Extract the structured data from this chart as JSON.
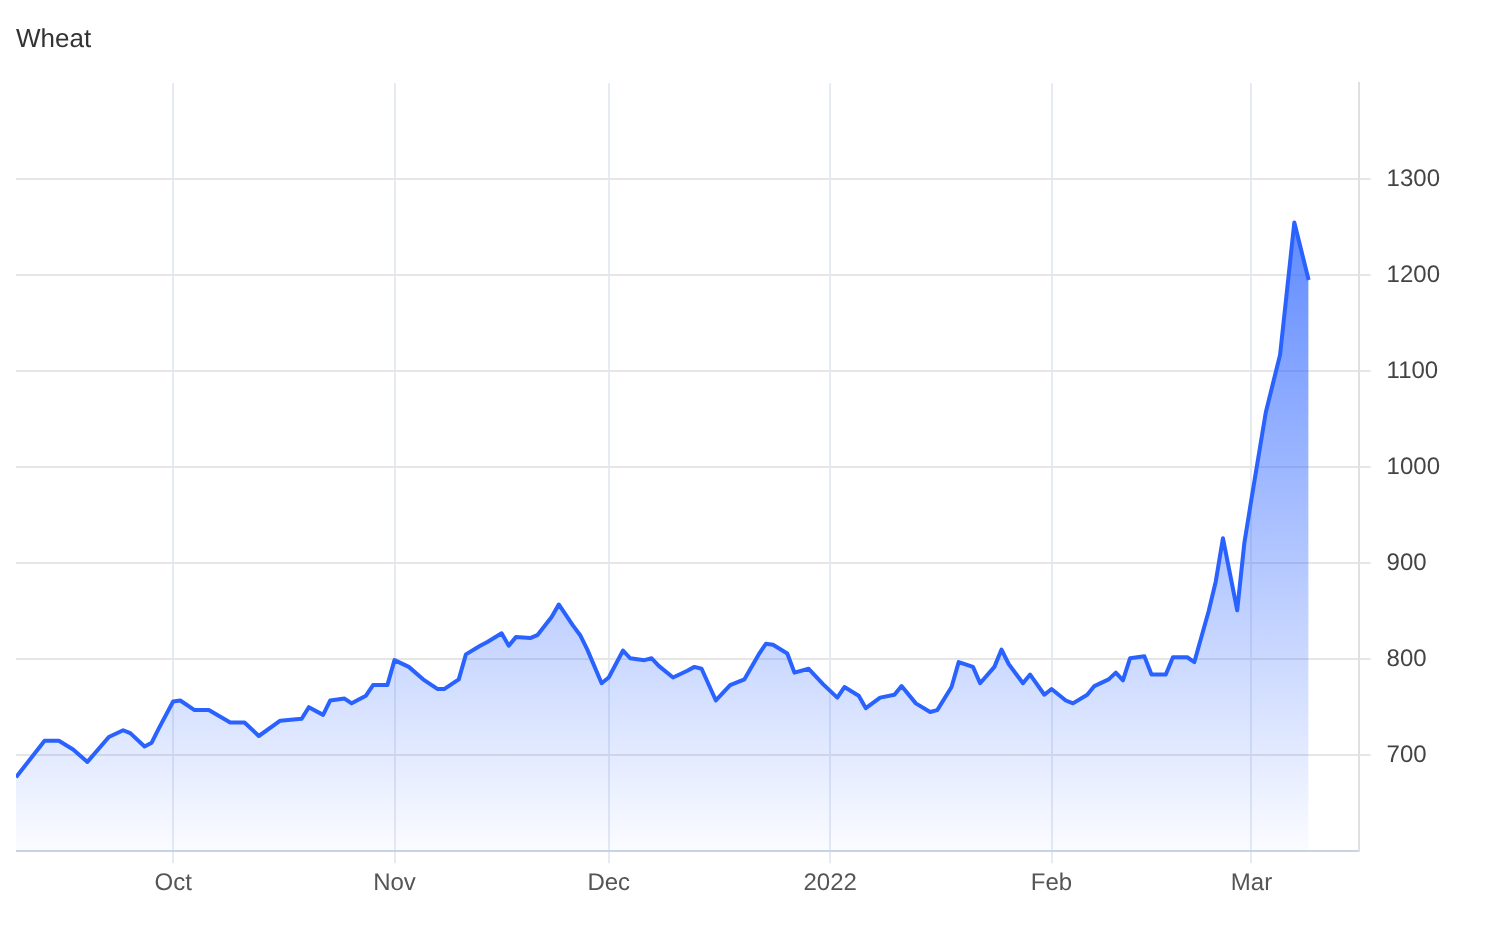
{
  "chart_data": {
    "type": "area",
    "title": "Wheat",
    "color": "#2962ff",
    "marker": "none",
    "grid": true,
    "x": [
      "2021-09-09",
      "2021-09-13",
      "2021-09-15",
      "2021-09-17",
      "2021-09-19",
      "2021-09-22",
      "2021-09-24",
      "2021-09-25",
      "2021-09-27",
      "2021-09-28",
      "2021-09-29",
      "2021-10-01",
      "2021-10-02",
      "2021-10-04",
      "2021-10-06",
      "2021-10-09",
      "2021-10-11",
      "2021-10-13",
      "2021-10-16",
      "2021-10-19",
      "2021-10-20",
      "2021-10-22",
      "2021-10-23",
      "2021-10-25",
      "2021-10-26",
      "2021-10-28",
      "2021-10-29",
      "2021-10-31",
      "2021-11-01",
      "2021-11-03",
      "2021-11-05",
      "2021-11-07",
      "2021-11-08",
      "2021-11-10",
      "2021-11-11",
      "2021-11-13",
      "2021-11-14",
      "2021-11-16",
      "2021-11-17",
      "2021-11-18",
      "2021-11-20",
      "2021-11-21",
      "2021-11-23",
      "2021-11-24",
      "2021-11-26",
      "2021-11-27",
      "2021-11-28",
      "2021-11-30",
      "2021-12-01",
      "2021-12-03",
      "2021-12-04",
      "2021-12-06",
      "2021-12-07",
      "2021-12-08",
      "2021-12-10",
      "2021-12-12",
      "2021-12-13",
      "2021-12-14",
      "2021-12-16",
      "2021-12-18",
      "2021-12-20",
      "2021-12-22",
      "2021-12-23",
      "2021-12-24",
      "2021-12-26",
      "2021-12-27",
      "2021-12-29",
      "2021-12-31",
      "2022-01-02",
      "2022-01-03",
      "2022-01-05",
      "2022-01-06",
      "2022-01-08",
      "2022-01-10",
      "2022-01-11",
      "2022-01-13",
      "2022-01-15",
      "2022-01-16",
      "2022-01-18",
      "2022-01-19",
      "2022-01-21",
      "2022-01-22",
      "2022-01-24",
      "2022-01-25",
      "2022-01-26",
      "2022-01-28",
      "2022-01-29",
      "2022-01-31",
      "2022-02-01",
      "2022-02-03",
      "2022-02-04",
      "2022-02-06",
      "2022-02-07",
      "2022-02-09",
      "2022-02-10",
      "2022-02-11",
      "2022-02-12",
      "2022-02-14",
      "2022-02-15",
      "2022-02-17",
      "2022-02-18",
      "2022-02-20",
      "2022-02-21",
      "2022-02-23",
      "2022-02-24",
      "2022-02-25",
      "2022-02-27",
      "2022-02-28",
      "2022-03-01",
      "2022-03-03",
      "2022-03-05",
      "2022-03-06",
      "2022-03-07",
      "2022-03-09"
    ],
    "values": [
      677,
      715,
      715,
      706,
      693,
      719,
      726,
      723,
      709,
      713,
      728,
      756,
      757,
      747,
      747,
      734,
      734,
      720,
      736,
      738,
      750,
      742,
      757,
      759,
      754,
      762,
      773,
      773,
      799,
      792,
      779,
      769,
      769,
      779,
      805,
      814,
      818,
      827,
      814,
      823,
      822,
      825,
      844,
      857,
      835,
      825,
      810,
      775,
      781,
      809,
      801,
      799,
      801,
      793,
      781,
      788,
      792,
      790,
      757,
      773,
      779,
      805,
      816,
      815,
      806,
      786,
      790,
      774,
      760,
      771,
      762,
      749,
      760,
      763,
      772,
      754,
      745,
      747,
      771,
      797,
      792,
      775,
      792,
      810,
      795,
      775,
      784,
      763,
      769,
      757,
      754,
      763,
      772,
      779,
      786,
      778,
      801,
      803,
      784,
      784,
      802,
      802,
      797,
      850,
      881,
      926,
      851,
      921,
      967,
      1057,
      1117,
      1186,
      1255,
      1195
    ],
    "xlim": [
      "2021-09-09",
      "2022-03-16"
    ],
    "xticks": [
      {
        "value": "2021-10-01",
        "label": "Oct"
      },
      {
        "value": "2021-11-01",
        "label": "Nov"
      },
      {
        "value": "2021-12-01",
        "label": "Dec"
      },
      {
        "value": "2022-01-01",
        "label": "2022"
      },
      {
        "value": "2022-02-01",
        "label": "Feb"
      },
      {
        "value": "2022-03-01",
        "label": "Mar"
      }
    ],
    "ylim": [
      600,
      1400
    ],
    "yticks": [
      700,
      800,
      900,
      1000,
      1100,
      1200,
      1300
    ]
  }
}
